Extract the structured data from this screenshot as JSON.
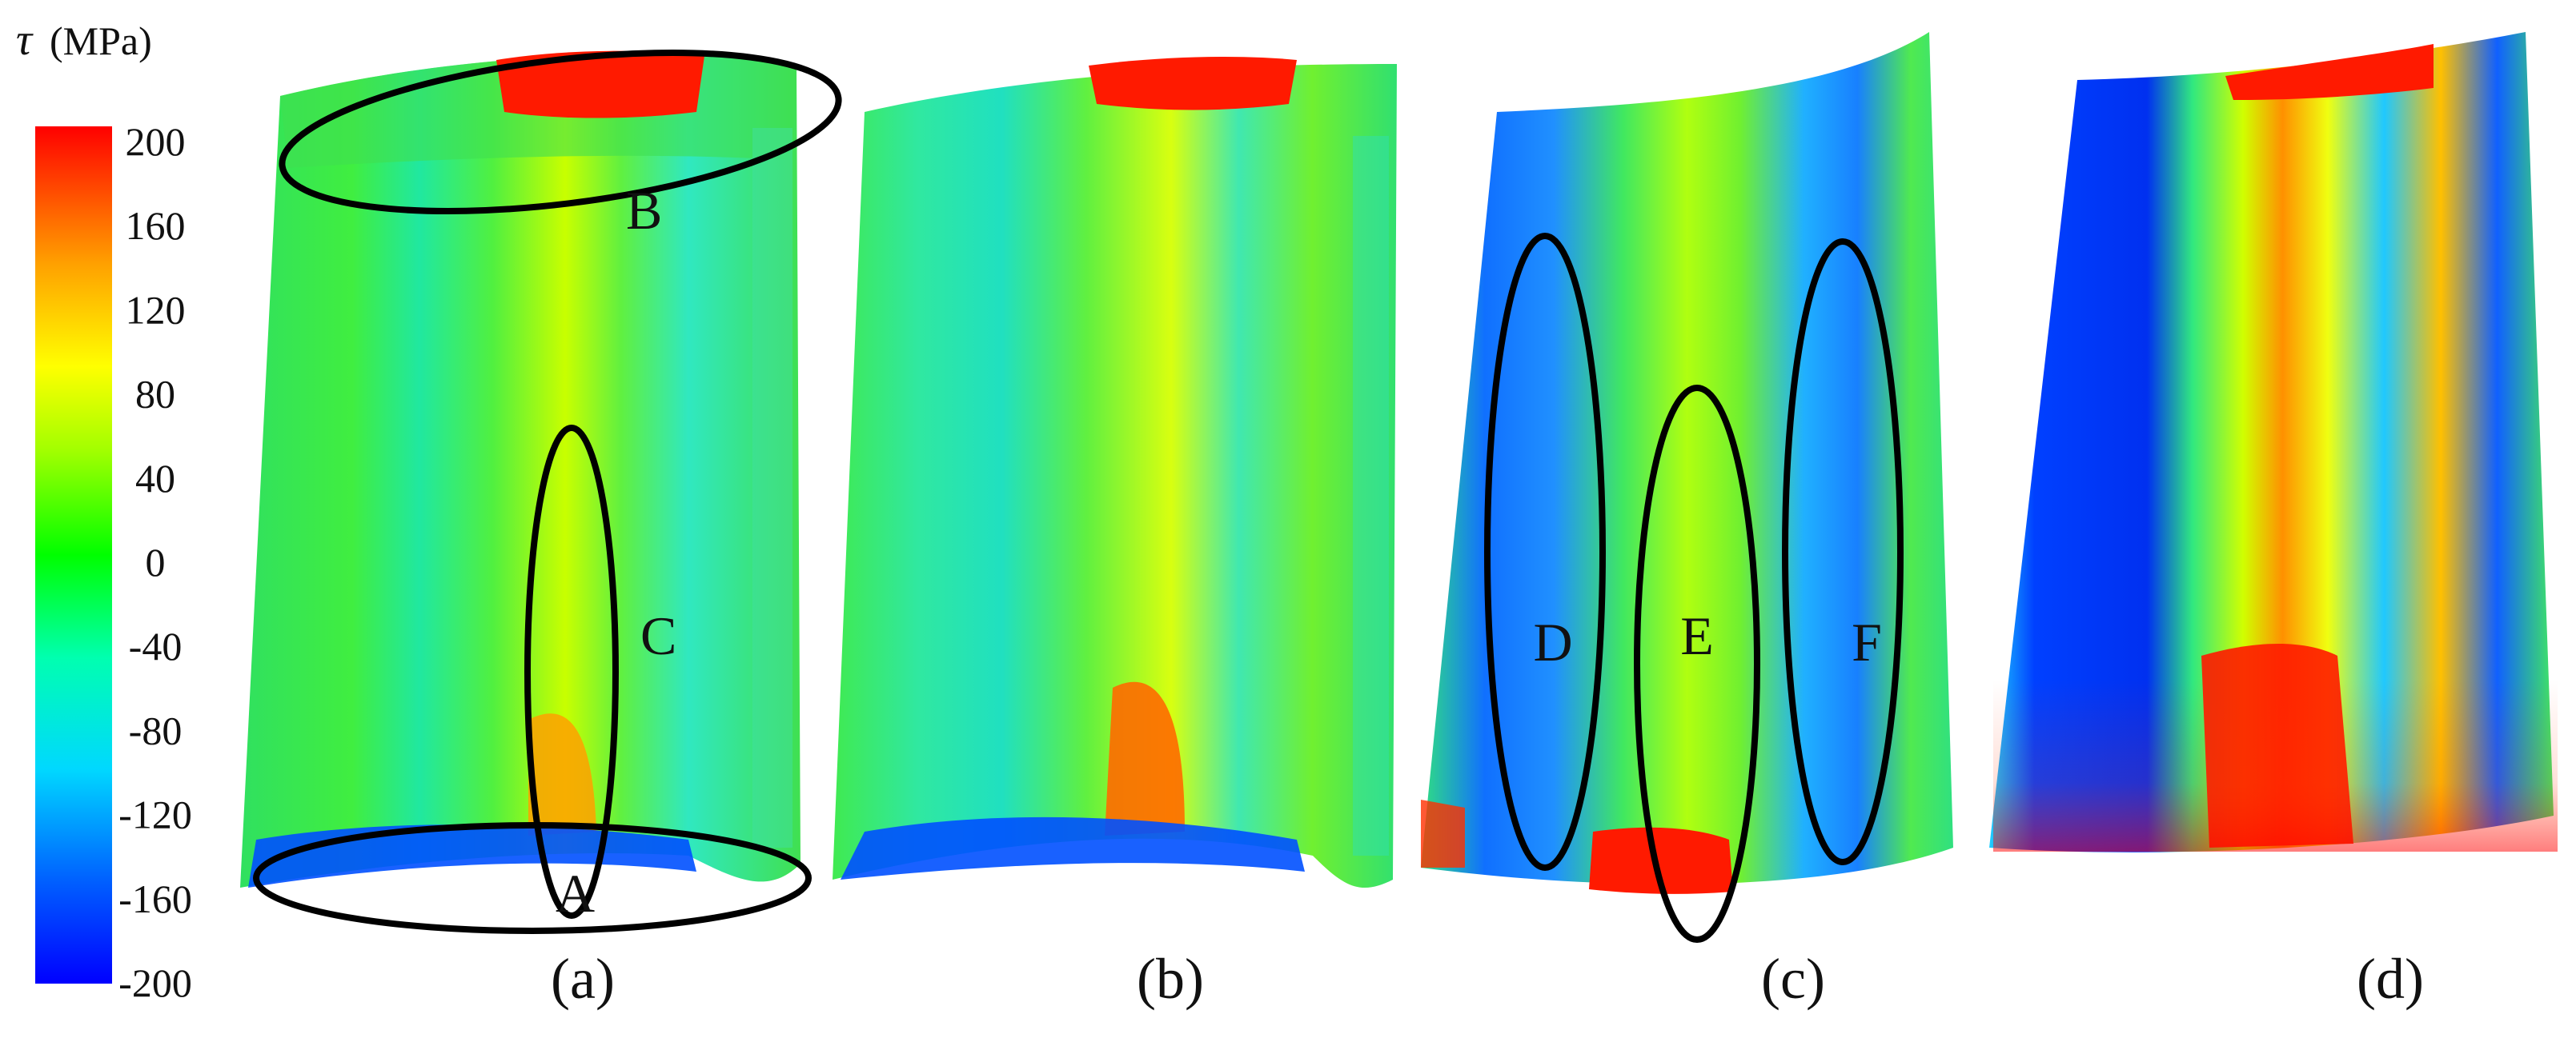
{
  "colorbar": {
    "symbol": "τ",
    "unit": "(MPa)",
    "ticks": [
      "200",
      "160",
      "120",
      "80",
      "40",
      "0",
      "-40",
      "-80",
      "-120",
      "-160",
      "-200"
    ],
    "min": -200,
    "max": 200,
    "colormap": [
      "#0000ff",
      "#0040ff",
      "#00a0ff",
      "#00e0ff",
      "#00ffa0",
      "#00ff00",
      "#80ff00",
      "#c0ff00",
      "#ffff00",
      "#ffb000",
      "#ff6000",
      "#ff0000"
    ]
  },
  "panels": [
    {
      "caption": "(a)",
      "regions": [
        "A",
        "B",
        "C"
      ]
    },
    {
      "caption": "(b)",
      "regions": []
    },
    {
      "caption": "(c)",
      "regions": [
        "D",
        "E",
        "F"
      ]
    },
    {
      "caption": "(d)",
      "regions": []
    }
  ]
}
